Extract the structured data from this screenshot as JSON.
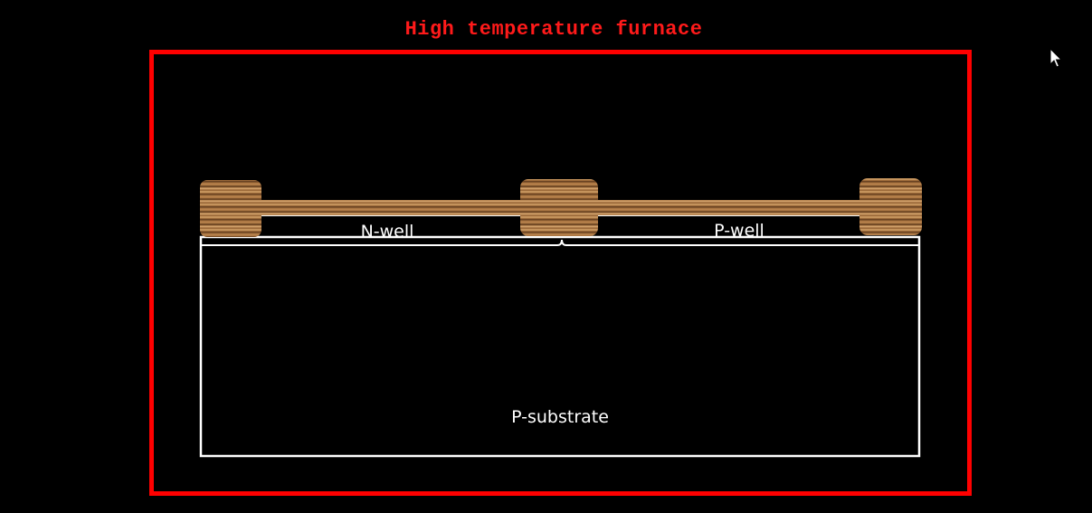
{
  "diagram": {
    "title": "High temperature furnace",
    "regions": {
      "n_well": "N-well",
      "p_well": "P-well",
      "p_substrate": "P-substrate"
    }
  },
  "colors": {
    "background": "#000000",
    "furnace_border": "#ff0000",
    "title": "#ff1a1a",
    "region_outline": "#ffffff",
    "oxide_wood_light": "#b07a45",
    "oxide_wood_dark": "#6b4423"
  },
  "icons": {
    "cursor": "mouse-pointer-icon"
  }
}
